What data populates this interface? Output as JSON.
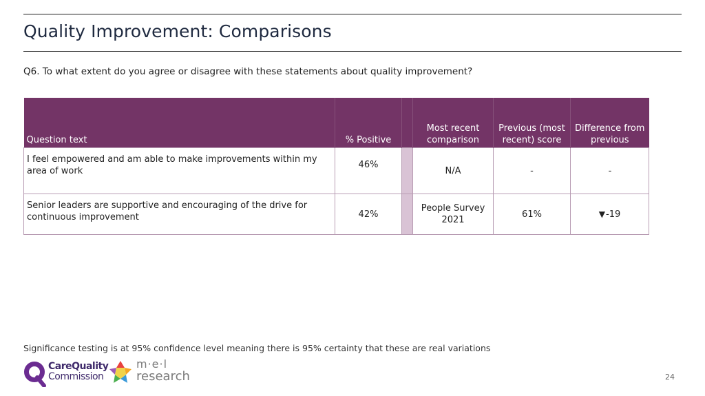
{
  "header": {
    "title": "Quality Improvement: Comparisons",
    "question": "Q6. To what extent do you agree or disagree with these statements about quality improvement?"
  },
  "table": {
    "columns": {
      "question_text": "Question text",
      "positive": "% Positive",
      "recent_comparison": "Most recent comparison",
      "previous_score": "Previous (most recent) score",
      "difference": "Difference from previous"
    },
    "rows": [
      {
        "question": "I feel empowered and am able to make improvements within my area of work",
        "positive": "46%",
        "comparison": "N/A",
        "previous": "-",
        "difference": "-",
        "arrow": ""
      },
      {
        "question": "Senior leaders are supportive and encouraging of the drive for continuous improvement",
        "positive": "42%",
        "comparison": "People Survey 2021",
        "previous": "61%",
        "difference": "-19",
        "arrow": "▼"
      }
    ]
  },
  "footer": {
    "note": "Significance testing is at 95% confidence level meaning there is 95% certainty that these are real variations",
    "page_number": "24",
    "logos": {
      "cqc_line1": "CareQuality",
      "cqc_line2": "Commission",
      "mel_line1": "m·e·l",
      "mel_line2": "research"
    }
  },
  "colors": {
    "header_bg": "#733466",
    "spacer": "#d9c3d5",
    "border": "#b89cb3"
  }
}
